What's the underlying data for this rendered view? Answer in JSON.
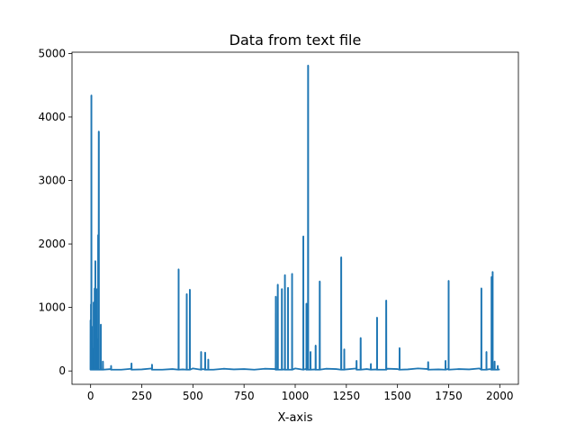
{
  "chart_data": {
    "type": "line",
    "title": "Data from text file",
    "xlabel": "X-axis",
    "ylabel": "",
    "xlim": [
      -91,
      2091
    ],
    "ylim": [
      -210,
      5020
    ],
    "x_ticks": [
      0,
      250,
      500,
      750,
      1000,
      1250,
      1500,
      1750,
      2000
    ],
    "y_ticks": [
      0,
      1000,
      2000,
      3000,
      4000,
      5000
    ],
    "grid": false,
    "legend": "none",
    "line_color": "#1f77b4",
    "baseline": [
      [
        0,
        20
      ],
      [
        100,
        30
      ],
      [
        150,
        20
      ],
      [
        200,
        35
      ],
      [
        250,
        25
      ],
      [
        300,
        40
      ],
      [
        350,
        20
      ],
      [
        400,
        30
      ],
      [
        450,
        25
      ],
      [
        500,
        40
      ],
      [
        550,
        30
      ],
      [
        600,
        20
      ],
      [
        650,
        35
      ],
      [
        700,
        25
      ],
      [
        750,
        30
      ],
      [
        800,
        20
      ],
      [
        850,
        35
      ],
      [
        900,
        30
      ],
      [
        950,
        25
      ],
      [
        1000,
        40
      ],
      [
        1050,
        30
      ],
      [
        1100,
        25
      ],
      [
        1150,
        35
      ],
      [
        1200,
        30
      ],
      [
        1250,
        25
      ],
      [
        1300,
        40
      ],
      [
        1350,
        30
      ],
      [
        1400,
        25
      ],
      [
        1450,
        35
      ],
      [
        1500,
        30
      ],
      [
        1550,
        25
      ],
      [
        1600,
        40
      ],
      [
        1650,
        30
      ],
      [
        1700,
        25
      ],
      [
        1750,
        35
      ],
      [
        1800,
        30
      ],
      [
        1850,
        25
      ],
      [
        1900,
        40
      ],
      [
        1950,
        30
      ],
      [
        2000,
        25
      ]
    ],
    "spikes": [
      {
        "x": 0,
        "y": 800
      },
      {
        "x": 2,
        "y": 1050
      },
      {
        "x": 4,
        "y": 4340
      },
      {
        "x": 6,
        "y": 700
      },
      {
        "x": 10,
        "y": 350
      },
      {
        "x": 15,
        "y": 1080
      },
      {
        "x": 20,
        "y": 1300
      },
      {
        "x": 23,
        "y": 1730
      },
      {
        "x": 28,
        "y": 1290
      },
      {
        "x": 32,
        "y": 500
      },
      {
        "x": 37,
        "y": 2140
      },
      {
        "x": 40,
        "y": 3770
      },
      {
        "x": 50,
        "y": 730
      },
      {
        "x": 60,
        "y": 150
      },
      {
        "x": 100,
        "y": 80
      },
      {
        "x": 200,
        "y": 120
      },
      {
        "x": 300,
        "y": 100
      },
      {
        "x": 430,
        "y": 1600
      },
      {
        "x": 470,
        "y": 1210
      },
      {
        "x": 485,
        "y": 1280
      },
      {
        "x": 540,
        "y": 300
      },
      {
        "x": 560,
        "y": 290
      },
      {
        "x": 575,
        "y": 180
      },
      {
        "x": 905,
        "y": 1170
      },
      {
        "x": 915,
        "y": 1360
      },
      {
        "x": 935,
        "y": 1290
      },
      {
        "x": 950,
        "y": 1510
      },
      {
        "x": 965,
        "y": 1310
      },
      {
        "x": 985,
        "y": 1530
      },
      {
        "x": 1040,
        "y": 2120
      },
      {
        "x": 1055,
        "y": 1060
      },
      {
        "x": 1063,
        "y": 4810
      },
      {
        "x": 1075,
        "y": 300
      },
      {
        "x": 1100,
        "y": 400
      },
      {
        "x": 1120,
        "y": 1410
      },
      {
        "x": 1225,
        "y": 1790
      },
      {
        "x": 1240,
        "y": 340
      },
      {
        "x": 1300,
        "y": 160
      },
      {
        "x": 1320,
        "y": 520
      },
      {
        "x": 1370,
        "y": 110
      },
      {
        "x": 1400,
        "y": 840
      },
      {
        "x": 1445,
        "y": 1110
      },
      {
        "x": 1510,
        "y": 360
      },
      {
        "x": 1650,
        "y": 140
      },
      {
        "x": 1735,
        "y": 160
      },
      {
        "x": 1750,
        "y": 1420
      },
      {
        "x": 1910,
        "y": 1300
      },
      {
        "x": 1935,
        "y": 300
      },
      {
        "x": 1960,
        "y": 1480
      },
      {
        "x": 1965,
        "y": 1560
      },
      {
        "x": 1975,
        "y": 150
      },
      {
        "x": 1990,
        "y": 80
      }
    ]
  }
}
